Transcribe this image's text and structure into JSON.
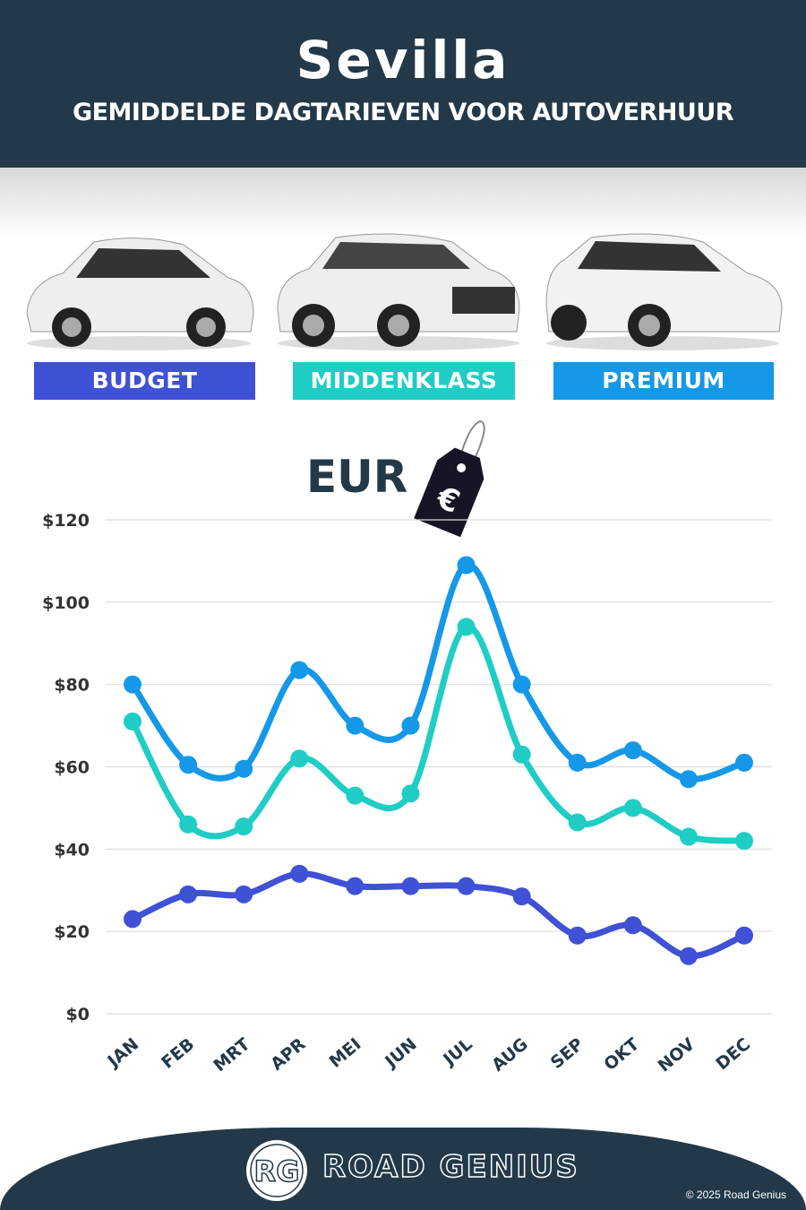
{
  "header": {
    "title": "Sevilla",
    "subtitle": "GEMIDDELDE DAGTARIEVEN VOOR AUTOVERHUUR"
  },
  "currency": {
    "label": "EUR",
    "icon": "euro-price-tag-icon",
    "symbol": "€"
  },
  "footer": {
    "brand": "ROAD GENIUS",
    "logo_text": "RG",
    "copyright": "© 2025 Road Genius"
  },
  "chart_data": {
    "type": "line",
    "categories": [
      "JAN",
      "FEB",
      "MRT",
      "APR",
      "MEI",
      "JUN",
      "JUL",
      "AUG",
      "SEP",
      "OKT",
      "NOV",
      "DEC"
    ],
    "ylim": [
      0,
      120
    ],
    "yticks": [
      0,
      20,
      40,
      60,
      80,
      100,
      120
    ],
    "ytick_labels": [
      "$0",
      "$20",
      "$40",
      "$60",
      "$80",
      "$100",
      "$120"
    ],
    "grid": true,
    "legend_placement": "top",
    "series": [
      {
        "name": "BUDGET",
        "color": "#3f51d4",
        "values": [
          23,
          29,
          29,
          34,
          31,
          31,
          31,
          28.5,
          19,
          21.5,
          14,
          19
        ]
      },
      {
        "name": "MIDDENKLASS",
        "color": "#1fcdc5",
        "values": [
          71,
          46,
          45.5,
          62,
          53,
          53.5,
          94,
          63,
          46.5,
          50,
          43,
          42
        ]
      },
      {
        "name": "PREMIUM",
        "color": "#1598e8",
        "values": [
          80,
          60.5,
          59.5,
          83.5,
          70,
          70,
          109,
          80,
          61,
          64,
          57,
          61
        ]
      }
    ]
  }
}
